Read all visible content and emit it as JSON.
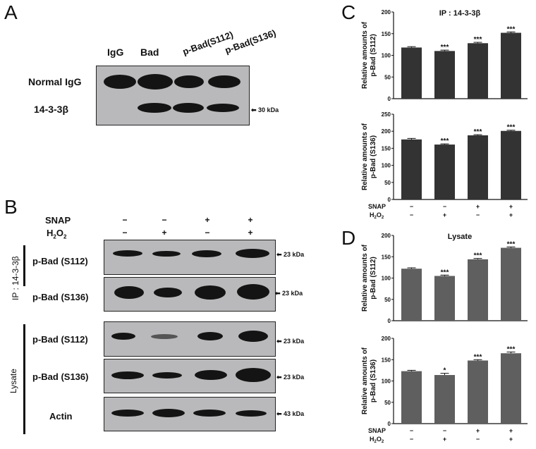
{
  "panels": {
    "A": {
      "letter": "A",
      "lane_labels": [
        "IgG",
        "Bad",
        "p-Bad(S112)",
        "p-Bad(S136)"
      ],
      "row_labels": [
        "Normal IgG",
        "14-3-3β"
      ],
      "marker": "30 kDa"
    },
    "B": {
      "letter": "B",
      "treatments": {
        "snap_label": "SNAP",
        "h2o2_label": "H",
        "h2o2_sub1": "2",
        "h2o2_mid": "O",
        "h2o2_sub2": "2",
        "snap": [
          "−",
          "−",
          "+",
          "+"
        ],
        "h2o2": [
          "−",
          "+",
          "−",
          "+"
        ]
      },
      "groups": [
        {
          "label": "IP : 14-3-3β",
          "rows": [
            {
              "label": "p-Bad (S112)",
              "marker": "23 kDa"
            },
            {
              "label": "p-Bad (S136)",
              "marker": "23 kDa"
            }
          ]
        },
        {
          "label": "Lysate",
          "rows": [
            {
              "label": "p-Bad (S112)",
              "marker": "23 kDa"
            },
            {
              "label": "p-Bad (S136)",
              "marker": "23 kDa"
            },
            {
              "label": "Actin",
              "marker": "43 kDa"
            }
          ]
        }
      ]
    },
    "C": {
      "letter": "C"
    },
    "D": {
      "letter": "D"
    }
  },
  "colors": {
    "bar_C": "#333333",
    "bar_D": "#5f5f5f",
    "blot_bg": "#b9b9bb",
    "band": "#141414"
  },
  "chart_data": [
    {
      "type": "bar",
      "panel": "C",
      "title": "IP : 14-3-3β",
      "ylabel": "Relative amounts of p-Bad (S112)",
      "ylabel_lines": [
        "Relative amounts of",
        "p-Bad (S112)"
      ],
      "categories": [
        "SNAP− H2O2−",
        "SNAP− H2O2+",
        "SNAP+ H2O2−",
        "SNAP+ H2O2+"
      ],
      "values": [
        118,
        110,
        128,
        152
      ],
      "errors": [
        2,
        2,
        2,
        2
      ],
      "significance": [
        "",
        "***",
        "***",
        "***"
      ],
      "ylim": [
        0,
        200
      ],
      "yticks": [
        0,
        50,
        100,
        150,
        200
      ]
    },
    {
      "type": "bar",
      "panel": "C",
      "title": "",
      "ylabel": "Relative amounts of p-Bad (S136)",
      "ylabel_lines": [
        "Relative amounts of",
        "p-Bad (S136)"
      ],
      "categories": [
        "SNAP− H2O2−",
        "SNAP− H2O2+",
        "SNAP+ H2O2−",
        "SNAP+ H2O2+"
      ],
      "values": [
        176,
        161,
        188,
        201
      ],
      "errors": [
        3,
        2,
        2,
        2
      ],
      "significance": [
        "",
        "***",
        "***",
        "***"
      ],
      "ylim": [
        0,
        250
      ],
      "yticks": [
        0,
        50,
        100,
        150,
        200,
        250
      ],
      "snap": [
        "−",
        "−",
        "+",
        "+"
      ],
      "h2o2": [
        "−",
        "+",
        "−",
        "+"
      ]
    },
    {
      "type": "bar",
      "panel": "D",
      "title": "Lysate",
      "ylabel": "Relative amounts of p-Bad (S112)",
      "ylabel_lines": [
        "Relative amounts of",
        "p-Bad (S112)"
      ],
      "categories": [
        "SNAP− H2O2−",
        "SNAP− H2O2+",
        "SNAP+ H2O2−",
        "SNAP+ H2O2+"
      ],
      "values": [
        122,
        105,
        144,
        171
      ],
      "errors": [
        2,
        2,
        2,
        2
      ],
      "significance": [
        "",
        "***",
        "***",
        "***"
      ],
      "ylim": [
        0,
        200
      ],
      "yticks": [
        0,
        50,
        100,
        150,
        200
      ]
    },
    {
      "type": "bar",
      "panel": "D",
      "title": "",
      "ylabel": "Relative amounts of p-Bad (S136)",
      "ylabel_lines": [
        "Relative amounts of",
        "p-Bad (S136)"
      ],
      "categories": [
        "SNAP− H2O2−",
        "SNAP− H2O2+",
        "SNAP+ H2O2−",
        "SNAP+ H2O2+"
      ],
      "values": [
        123,
        114,
        148,
        165
      ],
      "errors": [
        2,
        4,
        2,
        3
      ],
      "significance": [
        "",
        "*",
        "***",
        "***"
      ],
      "ylim": [
        0,
        200
      ],
      "yticks": [
        0,
        50,
        100,
        150,
        200
      ],
      "snap": [
        "−",
        "−",
        "+",
        "+"
      ],
      "h2o2": [
        "−",
        "+",
        "−",
        "+"
      ]
    }
  ]
}
